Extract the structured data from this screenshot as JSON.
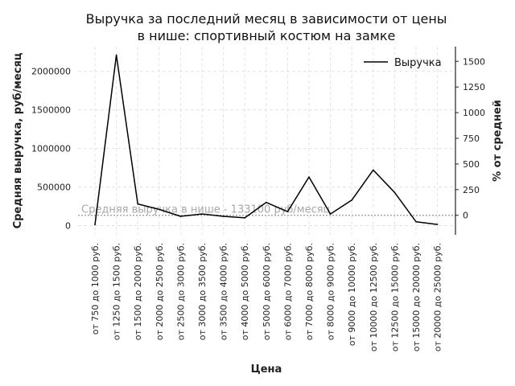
{
  "chart_data": {
    "type": "line",
    "title_lines": [
      "Выручка за последний месяц в зависимости от цены",
      "в нише: спортивный костюм на замке"
    ],
    "xlabel": "Цена",
    "ylabel": "Средняя выручка, руб/месяц",
    "y2label": "% от средней",
    "categories": [
      "от 750 до 1000 руб.",
      "от 1250 до 1500 руб.",
      "от 1500 до 2000 руб.",
      "от 2000 до 2500 руб.",
      "от 2500 до 3000 руб.",
      "от 3000 до 3500 руб.",
      "от 3500 до 4000 руб.",
      "от 4000 до 5000 руб.",
      "от 5000 до 6000 руб.",
      "от 6000 до 7000 руб.",
      "от 7000 до 8000 руб.",
      "от 8000 до 9000 руб.",
      "от 9000 до 10000 руб.",
      "от 10000 до 12500 руб.",
      "от 12500 до 15000 руб.",
      "от 15000 до 20000 руб.",
      "от 20000 до 25000 руб."
    ],
    "series": [
      {
        "name": "Выручка",
        "color": "#000000",
        "values": [
          10000,
          2210000,
          280000,
          210000,
          120000,
          150000,
          120000,
          100000,
          300000,
          180000,
          630000,
          150000,
          330000,
          720000,
          430000,
          50000,
          15000
        ]
      }
    ],
    "yticks": [
      0,
      500000,
      1000000,
      1500000,
      2000000
    ],
    "ylim": [
      -120000,
      2320000
    ],
    "y2ticks": [
      0,
      250,
      500,
      750,
      1000,
      1250,
      1500
    ],
    "mean_value": 133100,
    "mean_label": "Средняя выручка в нише - 133100 руб/месяц",
    "grid": true,
    "legend_position": "top-right"
  }
}
